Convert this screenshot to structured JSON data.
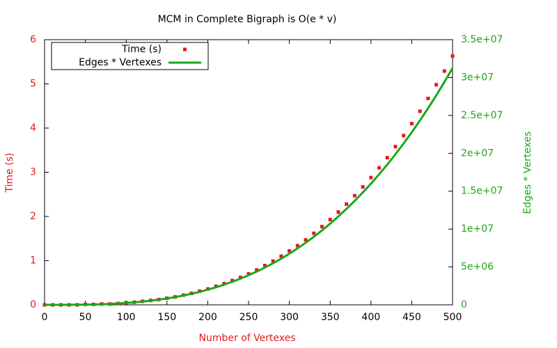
{
  "chart_data": {
    "type": "scatter-line",
    "title": "MCM in Complete Bigraph is O(e * v)",
    "x_label": "Number of Vertexes",
    "y_label": "Time (s)",
    "y2_label": "Edges * Vertexes",
    "x": [
      0,
      10,
      20,
      30,
      40,
      50,
      60,
      70,
      80,
      90,
      100,
      110,
      120,
      130,
      140,
      150,
      160,
      170,
      180,
      190,
      200,
      210,
      220,
      230,
      240,
      250,
      260,
      270,
      280,
      290,
      300,
      310,
      320,
      330,
      340,
      350,
      360,
      370,
      380,
      390,
      400,
      410,
      420,
      430,
      440,
      450,
      460,
      470,
      480,
      490,
      500
    ],
    "series": [
      {
        "name": "Time (s)",
        "color": "#e41a1c",
        "style": "points",
        "values": [
          0,
          0,
          0,
          0,
          0,
          0.01,
          0.01,
          0.02,
          0.02,
          0.03,
          0.05,
          0.06,
          0.08,
          0.1,
          0.12,
          0.15,
          0.18,
          0.22,
          0.26,
          0.31,
          0.36,
          0.42,
          0.48,
          0.55,
          0.62,
          0.7,
          0.79,
          0.89,
          0.99,
          1.1,
          1.22,
          1.34,
          1.47,
          1.62,
          1.77,
          1.93,
          2.1,
          2.28,
          2.47,
          2.67,
          2.88,
          3.1,
          3.33,
          3.58,
          3.83,
          4.1,
          4.38,
          4.67,
          4.98,
          5.29,
          5.63
        ]
      },
      {
        "name": "Edges * Vertexes",
        "color": "#1aa81a",
        "style": "line",
        "axis": "y2",
        "values": [
          0,
          250,
          2000,
          6750,
          16000,
          31250,
          54000,
          85750,
          128000,
          182250,
          250000,
          332750,
          432000,
          549250,
          686000,
          843750,
          1024000,
          1228250,
          1458000,
          1714750,
          2000000,
          2315250,
          2662000,
          3041750,
          3456000,
          3906250,
          4394000,
          4920750,
          5488000,
          6097250,
          6750000,
          7447750,
          8192000,
          8984250,
          9826000,
          10718750,
          11664000,
          12663250,
          13718000,
          14829750,
          16000000,
          17230250,
          18522000,
          19876750,
          21296000,
          22781250,
          24334000,
          25955750,
          27648000,
          29412250,
          31250000
        ]
      }
    ],
    "xlim": [
      0,
      500
    ],
    "xticks": [
      0,
      50,
      100,
      150,
      200,
      250,
      300,
      350,
      400,
      450,
      500
    ],
    "ylim": [
      0,
      6
    ],
    "yticks": [
      0,
      1,
      2,
      3,
      4,
      5,
      6
    ],
    "y2lim": [
      0,
      35000000
    ],
    "y2ticks": [
      0,
      {
        "value": 5000000,
        "label": "5e+06"
      },
      {
        "value": 10000000,
        "label": "1e+07"
      },
      {
        "value": 15000000,
        "label": "1.5e+07"
      },
      {
        "value": 20000000,
        "label": "2e+07"
      },
      {
        "value": 25000000,
        "label": "2.5e+07"
      },
      {
        "value": 30000000,
        "label": "3e+07"
      },
      {
        "value": 35000000,
        "label": "3.5e+07"
      }
    ],
    "legend": "top-left"
  }
}
